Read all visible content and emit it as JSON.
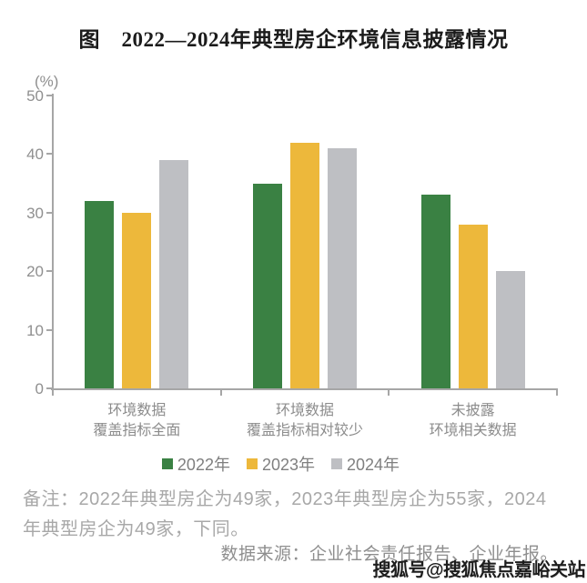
{
  "title": "图　2022—2024年典型房企环境信息披露情况",
  "chart_data": {
    "type": "bar",
    "title": "图　2022—2024年典型房企环境信息披露情况",
    "unit_label": "(%)",
    "categories": [
      {
        "line1": "环境数据",
        "line2": "覆盖指标全面"
      },
      {
        "line1": "环境数据",
        "line2": "覆盖指标相对较少"
      },
      {
        "line1": "未披露",
        "line2": "环境相关数据"
      }
    ],
    "series": [
      {
        "name": "2022年",
        "color": "#3A8143",
        "values": [
          32,
          35,
          33
        ]
      },
      {
        "name": "2023年",
        "color": "#EDB83B",
        "values": [
          30,
          42,
          28
        ]
      },
      {
        "name": "2024年",
        "color": "#BEBFC3",
        "values": [
          39,
          41,
          20
        ]
      }
    ],
    "ylim": [
      0,
      50
    ],
    "ytick_step": 10,
    "yticks": [
      0,
      10,
      20,
      30,
      40,
      50
    ],
    "grid": false,
    "legend_position": "bottom",
    "axis_color": "#A6A6A6"
  },
  "footnote": {
    "line1": "备注：2022年典型房企为49家，2023年典型房企为55家，2024",
    "line2": "年典型房企为49家，下同。"
  },
  "source": "数据来源：企业社会责任报告、企业年报。",
  "watermark": "搜狐号@搜狐焦点嘉峪关站"
}
